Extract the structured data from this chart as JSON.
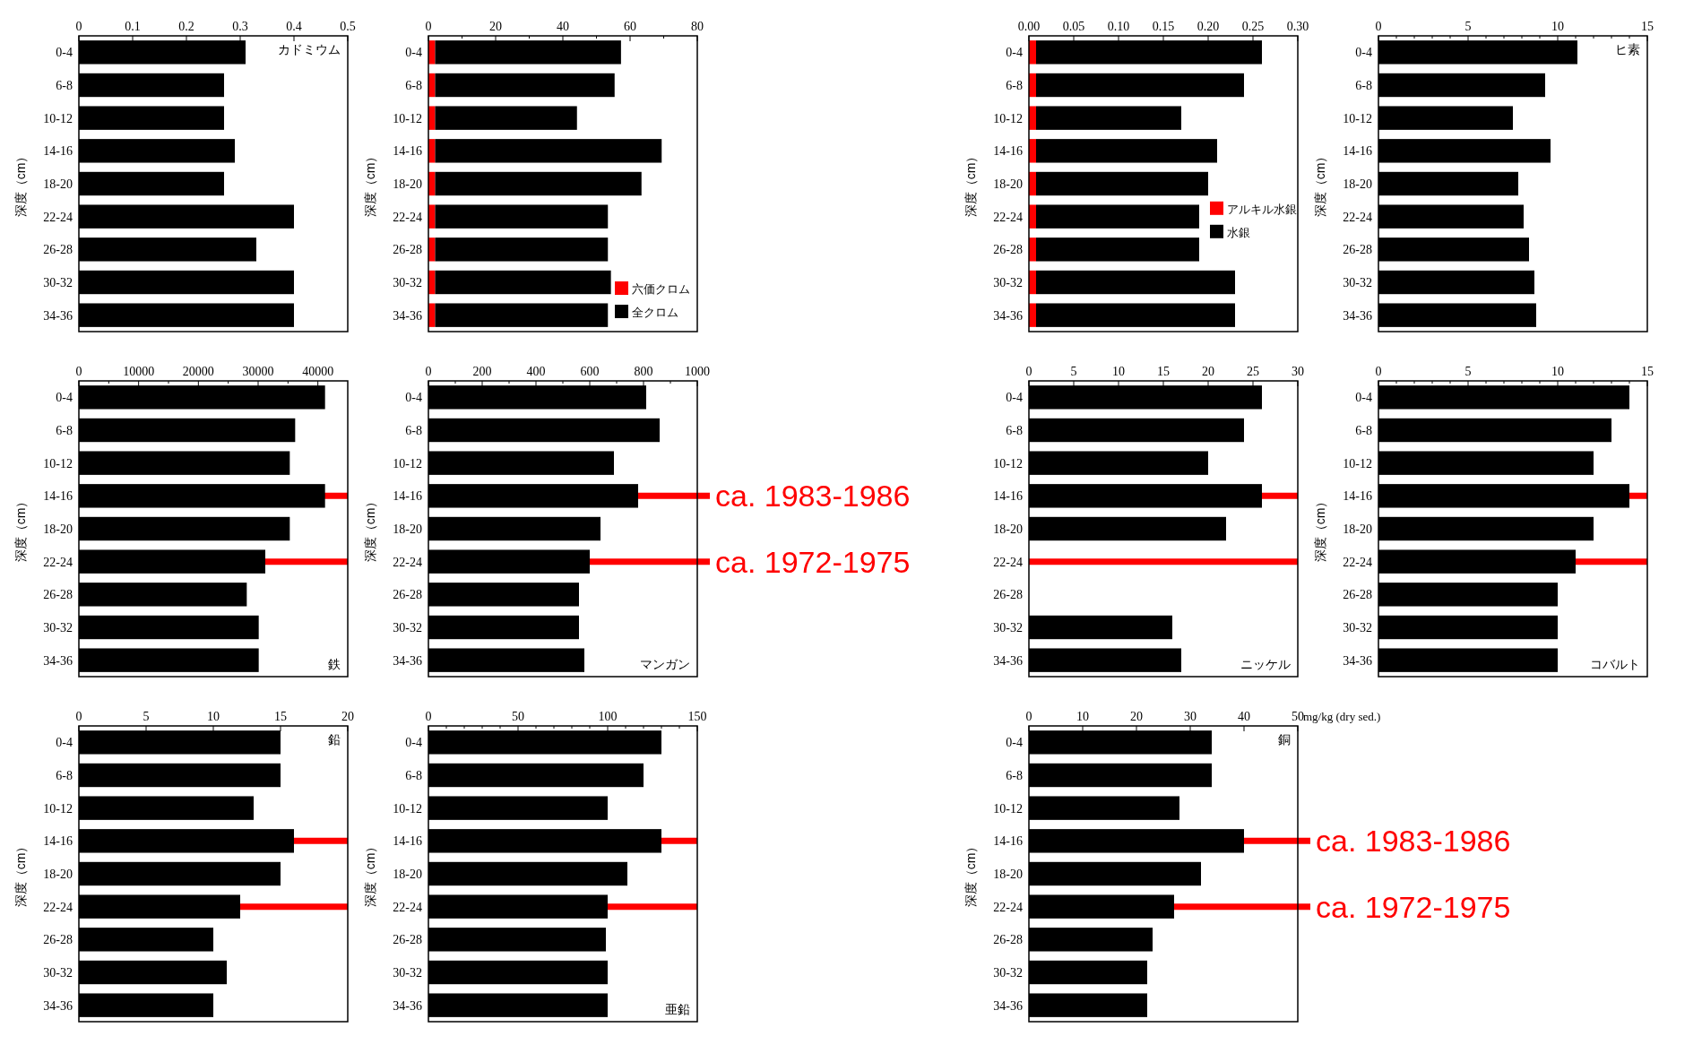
{
  "chart_data": [
    {
      "type": "bar",
      "orientation": "horizontal",
      "title": "カドミウム",
      "ylabel": "深度（cm）",
      "categories": [
        "0-4",
        "6-8",
        "10-12",
        "14-16",
        "18-20",
        "22-24",
        "26-28",
        "30-32",
        "34-36"
      ],
      "values": [
        0.31,
        0.27,
        0.27,
        0.29,
        0.27,
        0.4,
        0.33,
        0.4,
        0.4
      ],
      "color": "#000000",
      "xlim": [
        0,
        0.5
      ],
      "xticks": [
        0,
        0.1,
        0.2,
        0.3,
        0.4,
        0.5
      ]
    },
    {
      "type": "bar",
      "orientation": "horizontal",
      "stacked": true,
      "legend": "bottom right",
      "ylabel": "深度（cm）",
      "categories": [
        "0-4",
        "6-8",
        "10-12",
        "14-16",
        "18-20",
        "22-24",
        "26-28",
        "30-32",
        "34-36"
      ],
      "series": [
        {
          "name": "六価クロム",
          "color": "#ff0000",
          "values": [
            2,
            2,
            2,
            2,
            2,
            2,
            2,
            2,
            2
          ]
        },
        {
          "name": "全クロム",
          "color": "#000000",
          "values": [
            55.3,
            53.4,
            42.2,
            67.4,
            61.4,
            51.4,
            51.4,
            52.3,
            51.4
          ]
        }
      ],
      "xlim": [
        0,
        80
      ],
      "xticks": [
        0,
        {
          "value": 10,
          "label": null
        },
        20,
        {
          "value": 30,
          "label": null
        },
        40,
        {
          "value": 50,
          "label": null
        },
        60,
        {
          "value": 70,
          "label": null
        },
        80
      ]
    },
    {
      "type": "bar",
      "orientation": "horizontal",
      "stacked": true,
      "legend": "right",
      "ylabel": "深度（cm）",
      "categories": [
        "0-4",
        "6-8",
        "10-12",
        "14-16",
        "18-20",
        "22-24",
        "26-28",
        "30-32",
        "34-36"
      ],
      "series": [
        {
          "name": "アルキル水銀",
          "color": "#ff0000",
          "values": [
            0.008,
            0.008,
            0.008,
            0.008,
            0.008,
            0.008,
            0.008,
            0.008,
            0.008
          ]
        },
        {
          "name": "水銀",
          "color": "#000000",
          "values": [
            0.252,
            0.232,
            0.162,
            0.202,
            0.192,
            0.182,
            0.182,
            0.222,
            0.222
          ]
        }
      ],
      "xlim": [
        0,
        0.3
      ],
      "xticks": [
        {
          "value": 0,
          "label": "0.00"
        },
        {
          "value": 0.05,
          "label": "0.05"
        },
        {
          "value": 0.1,
          "label": "0.10"
        },
        {
          "value": 0.15,
          "label": "0.15"
        },
        {
          "value": 0.2,
          "label": "0.20"
        },
        {
          "value": 0.25,
          "label": "0.25"
        },
        {
          "value": 0.3,
          "label": "0.30"
        }
      ]
    },
    {
      "type": "bar",
      "orientation": "horizontal",
      "title": "ヒ素",
      "ylabel": "深度（cm）",
      "categories": [
        "0-4",
        "6-8",
        "10-12",
        "14-16",
        "18-20",
        "22-24",
        "26-28",
        "30-32",
        "34-36"
      ],
      "values": [
        11.1,
        9.3,
        7.5,
        9.6,
        7.8,
        8.1,
        8.4,
        8.7,
        8.8
      ],
      "color": "#000000",
      "xlim": [
        0,
        15
      ],
      "xticks": [
        0,
        {
          "value": 1,
          "label": null
        },
        {
          "value": 2,
          "label": null
        },
        {
          "value": 3,
          "label": null
        },
        {
          "value": 4,
          "label": null
        },
        5,
        {
          "value": 6,
          "label": null
        },
        {
          "value": 7,
          "label": null
        },
        {
          "value": 8,
          "label": null
        },
        {
          "value": 9,
          "label": null
        },
        10,
        {
          "value": 11,
          "label": null
        },
        {
          "value": 12,
          "label": null
        },
        {
          "value": 13,
          "label": null
        },
        {
          "value": 14,
          "label": null
        },
        15
      ]
    },
    {
      "type": "bar",
      "orientation": "horizontal",
      "title": "鉄",
      "ylabel": "深度（cm）",
      "categories": [
        "0-4",
        "6-8",
        "10-12",
        "14-16",
        "18-20",
        "22-24",
        "26-28",
        "30-32",
        "34-36"
      ],
      "values": [
        41200,
        36200,
        35300,
        41200,
        35300,
        31200,
        28100,
        30100,
        30100
      ],
      "color": "#000000",
      "xlim": [
        0,
        45000
      ],
      "xticks": [
        0,
        {
          "value": 5000,
          "label": null
        },
        10000,
        {
          "value": 15000,
          "label": null
        },
        20000,
        {
          "value": 25000,
          "label": null
        },
        30000,
        {
          "value": 35000,
          "label": null
        },
        40000
      ],
      "ref_lines": [
        {
          "axis": "y",
          "value": "14-16",
          "color": "#ff0000"
        },
        {
          "axis": "y",
          "value": "22-24",
          "color": "#ff0000"
        }
      ]
    },
    {
      "type": "bar",
      "orientation": "horizontal",
      "title": "マンガン",
      "ylabel": "深度（cm）",
      "categories": [
        "0-4",
        "6-8",
        "10-12",
        "14-16",
        "18-20",
        "22-24",
        "26-28",
        "30-32",
        "34-36"
      ],
      "values": [
        810,
        860,
        690,
        780,
        640,
        600,
        560,
        560,
        580
      ],
      "color": "#000000",
      "xlim": [
        0,
        1000
      ],
      "xticks": [
        0,
        {
          "value": 100,
          "label": null
        },
        200,
        {
          "value": 300,
          "label": null
        },
        400,
        {
          "value": 500,
          "label": null
        },
        600,
        {
          "value": 700,
          "label": null
        },
        800,
        {
          "value": 900,
          "label": null
        },
        1000
      ],
      "ref_lines": [
        {
          "axis": "y",
          "value": "14-16",
          "label": "ca. 1983-1986",
          "color": "#ff0000"
        },
        {
          "axis": "y",
          "value": "22-24",
          "label": "ca. 1972-1975",
          "color": "#ff0000"
        }
      ]
    },
    {
      "type": "bar",
      "orientation": "horizontal",
      "title": "ニッケル",
      "categories": [
        "0-4",
        "6-8",
        "10-12",
        "14-16",
        "18-20",
        "22-24",
        "26-28",
        "30-32",
        "34-36"
      ],
      "values": [
        26,
        24,
        20,
        26,
        22,
        null,
        null,
        16,
        17
      ],
      "color": "#000000",
      "xlim": [
        0,
        30
      ],
      "xticks": [
        0,
        5,
        10,
        15,
        20,
        25,
        30
      ],
      "ref_lines": [
        {
          "axis": "y",
          "value": "14-16",
          "color": "#ff0000"
        },
        {
          "axis": "y",
          "value": "22-24",
          "color": "#ff0000"
        }
      ]
    },
    {
      "type": "bar",
      "orientation": "horizontal",
      "title": "コバルト",
      "ylabel": "深度（cm）",
      "categories": [
        "0-4",
        "6-8",
        "10-12",
        "14-16",
        "18-20",
        "22-24",
        "26-28",
        "30-32",
        "34-36"
      ],
      "values": [
        14,
        13,
        12,
        14,
        12,
        11,
        10,
        10,
        10
      ],
      "color": "#000000",
      "xlim": [
        0,
        15
      ],
      "xticks": [
        0,
        {
          "value": 1,
          "label": null
        },
        {
          "value": 2,
          "label": null
        },
        {
          "value": 3,
          "label": null
        },
        {
          "value": 4,
          "label": null
        },
        5,
        {
          "value": 6,
          "label": null
        },
        {
          "value": 7,
          "label": null
        },
        {
          "value": 8,
          "label": null
        },
        {
          "value": 9,
          "label": null
        },
        10,
        {
          "value": 11,
          "label": null
        },
        {
          "value": 12,
          "label": null
        },
        {
          "value": 13,
          "label": null
        },
        {
          "value": 14,
          "label": null
        },
        15
      ],
      "ref_lines": [
        {
          "axis": "y",
          "value": "14-16",
          "color": "#ff0000"
        },
        {
          "axis": "y",
          "value": "22-24",
          "color": "#ff0000"
        }
      ]
    },
    {
      "type": "bar",
      "orientation": "horizontal",
      "title": "鉛",
      "ylabel": "深度（cm）",
      "categories": [
        "0-4",
        "6-8",
        "10-12",
        "14-16",
        "18-20",
        "22-24",
        "26-28",
        "30-32",
        "34-36"
      ],
      "values": [
        15,
        15,
        13,
        16,
        15,
        12,
        10,
        11,
        10
      ],
      "color": "#000000",
      "xlim": [
        0,
        20
      ],
      "xticks": [
        0,
        5,
        10,
        15,
        20
      ],
      "ref_lines": [
        {
          "axis": "y",
          "value": "14-16",
          "color": "#ff0000"
        },
        {
          "axis": "y",
          "value": "22-24",
          "color": "#ff0000"
        }
      ]
    },
    {
      "type": "bar",
      "orientation": "horizontal",
      "title": "亜鉛",
      "ylabel": "深度（cm）",
      "categories": [
        "0-4",
        "6-8",
        "10-12",
        "14-16",
        "18-20",
        "22-24",
        "26-28",
        "30-32",
        "34-36"
      ],
      "values": [
        130,
        120,
        100,
        130,
        111,
        100,
        99,
        100,
        100
      ],
      "color": "#000000",
      "xlim": [
        0,
        150
      ],
      "xticks": [
        0,
        {
          "value": 10,
          "label": null
        },
        {
          "value": 20,
          "label": null
        },
        {
          "value": 30,
          "label": null
        },
        {
          "value": 40,
          "label": null
        },
        50,
        {
          "value": 60,
          "label": null
        },
        {
          "value": 70,
          "label": null
        },
        {
          "value": 80,
          "label": null
        },
        {
          "value": 90,
          "label": null
        },
        100,
        {
          "value": 110,
          "label": null
        },
        {
          "value": 120,
          "label": null
        },
        {
          "value": 130,
          "label": null
        },
        {
          "value": 140,
          "label": null
        },
        150
      ],
      "ref_lines": [
        {
          "axis": "y",
          "value": "14-16",
          "color": "#ff0000"
        },
        {
          "axis": "y",
          "value": "22-24",
          "color": "#ff0000"
        }
      ]
    },
    {
      "type": "bar",
      "orientation": "horizontal",
      "title": "銅",
      "ylabel": "深度（cm）",
      "xlabel": "mg/kg (dry sed.)",
      "categories": [
        "0-4",
        "6-8",
        "10-12",
        "14-16",
        "18-20",
        "22-24",
        "26-28",
        "30-32",
        "34-36"
      ],
      "values": [
        34,
        34,
        28,
        40,
        32,
        27,
        23,
        22,
        22
      ],
      "color": "#000000",
      "xlim": [
        0,
        50
      ],
      "xticks": [
        0,
        10,
        20,
        30,
        40,
        50
      ],
      "ref_lines": [
        {
          "axis": "y",
          "value": "14-16",
          "label": "ca. 1983-1986",
          "color": "#ff0000"
        },
        {
          "axis": "y",
          "value": "22-24",
          "label": "ca. 1972-1975",
          "color": "#ff0000"
        }
      ]
    }
  ]
}
